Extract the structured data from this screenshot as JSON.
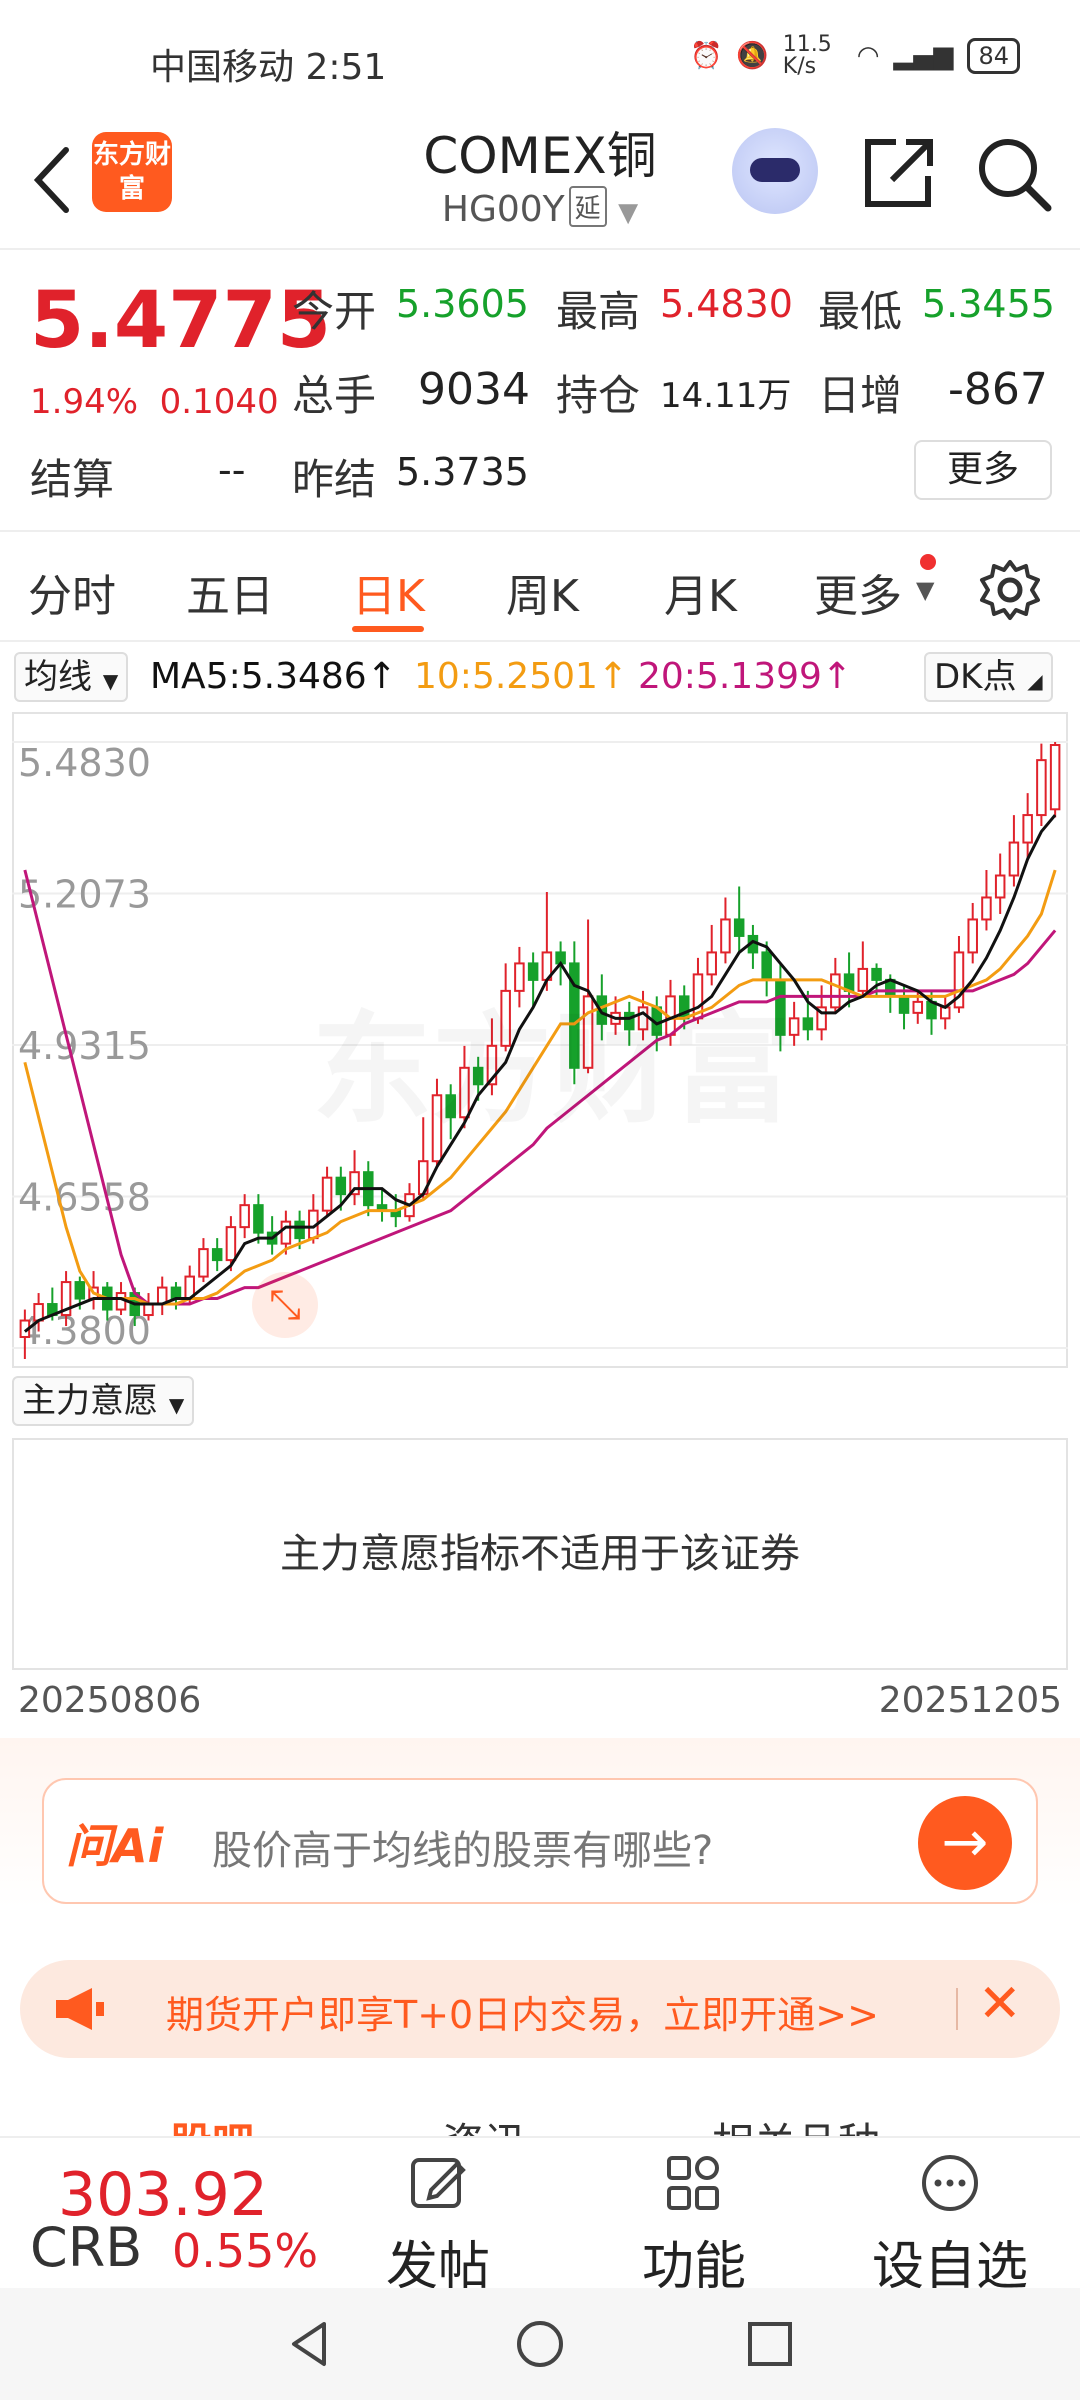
{
  "status": {
    "carrier": "中国移动 2:51",
    "net_speed": "11.5 K/s",
    "battery": "84"
  },
  "header": {
    "title": "COMEX铜",
    "code": "HG00Y",
    "delay_tag": "延",
    "logo_text": "东方财富"
  },
  "quote": {
    "price": "5.4775",
    "change_pct": "1.94%",
    "change": "0.1040",
    "open_label": "今开",
    "open": "5.3605",
    "high_label": "最高",
    "high": "5.4830",
    "low_label": "最低",
    "low": "5.3455",
    "volume_label": "总手",
    "volume": "9034",
    "oi_label": "持仓",
    "oi": "14.11万",
    "daily_inc_label": "日增",
    "daily_inc": "-867",
    "settle_label": "结算",
    "settle": "--",
    "prev_settle_label": "昨结",
    "prev_settle": "5.3735",
    "more": "更多"
  },
  "tabs": [
    "分时",
    "五日",
    "日K",
    "周K",
    "月K",
    "更多"
  ],
  "ma": {
    "selector": "均线",
    "ma5": "MA5:5.3486↑",
    "ma10": "10:5.2501↑",
    "ma20": "20:5.1399↑",
    "dk": "DK点"
  },
  "colors": {
    "accent": "#ff5a1f",
    "up": "#e0222b",
    "down": "#16a12b",
    "ma5": "#111111",
    "ma10": "#f39c12",
    "ma20": "#c0167a"
  },
  "chart_data": {
    "type": "candlestick",
    "y_ticks": [
      "5.4830",
      "5.2073",
      "4.9315",
      "4.6558",
      "4.3800"
    ],
    "ylim": [
      4.38,
      5.483
    ],
    "x_range": [
      "20250806",
      "20251205"
    ],
    "candles": [
      [
        4.4,
        4.43,
        4.36,
        4.45
      ],
      [
        4.43,
        4.46,
        4.41,
        4.48
      ],
      [
        4.46,
        4.44,
        4.43,
        4.49
      ],
      [
        4.44,
        4.5,
        4.42,
        4.52
      ],
      [
        4.5,
        4.47,
        4.45,
        4.51
      ],
      [
        4.47,
        4.49,
        4.45,
        4.52
      ],
      [
        4.49,
        4.45,
        4.43,
        4.5
      ],
      [
        4.45,
        4.48,
        4.44,
        4.5
      ],
      [
        4.48,
        4.44,
        4.42,
        4.49
      ],
      [
        4.44,
        4.46,
        4.43,
        4.48
      ],
      [
        4.46,
        4.49,
        4.44,
        4.51
      ],
      [
        4.49,
        4.47,
        4.45,
        4.5
      ],
      [
        4.47,
        4.51,
        4.46,
        4.53
      ],
      [
        4.51,
        4.56,
        4.5,
        4.58
      ],
      [
        4.56,
        4.54,
        4.52,
        4.58
      ],
      [
        4.54,
        4.6,
        4.52,
        4.62
      ],
      [
        4.6,
        4.64,
        4.58,
        4.66
      ],
      [
        4.64,
        4.59,
        4.57,
        4.66
      ],
      [
        4.59,
        4.57,
        4.55,
        4.62
      ],
      [
        4.57,
        4.61,
        4.55,
        4.63
      ],
      [
        4.61,
        4.58,
        4.56,
        4.63
      ],
      [
        4.58,
        4.63,
        4.57,
        4.66
      ],
      [
        4.63,
        4.69,
        4.62,
        4.71
      ],
      [
        4.69,
        4.66,
        4.63,
        4.71
      ],
      [
        4.66,
        4.7,
        4.64,
        4.74
      ],
      [
        4.7,
        4.64,
        4.62,
        4.72
      ],
      [
        4.64,
        4.63,
        4.61,
        4.67
      ],
      [
        4.63,
        4.62,
        4.6,
        4.66
      ],
      [
        4.62,
        4.66,
        4.61,
        4.68
      ],
      [
        4.66,
        4.72,
        4.65,
        4.8
      ],
      [
        4.72,
        4.84,
        4.71,
        4.87
      ],
      [
        4.84,
        4.8,
        4.76,
        4.86
      ],
      [
        4.8,
        4.89,
        4.78,
        4.93
      ],
      [
        4.89,
        4.86,
        4.83,
        4.91
      ],
      [
        4.86,
        4.93,
        4.84,
        4.98
      ],
      [
        4.93,
        5.03,
        4.92,
        5.08
      ],
      [
        5.03,
        5.08,
        5.0,
        5.11
      ],
      [
        5.08,
        5.05,
        5.0,
        5.1
      ],
      [
        5.05,
        5.1,
        5.03,
        5.21
      ],
      [
        5.1,
        5.08,
        5.04,
        5.12
      ],
      [
        5.08,
        4.89,
        4.86,
        5.12
      ],
      [
        4.89,
        5.02,
        4.88,
        5.16
      ],
      [
        5.02,
        4.97,
        4.94,
        5.06
      ],
      [
        4.97,
        4.99,
        4.95,
        5.02
      ],
      [
        4.99,
        4.96,
        4.93,
        5.01
      ],
      [
        4.96,
        5.0,
        4.94,
        5.03
      ],
      [
        5.0,
        4.95,
        4.92,
        5.02
      ],
      [
        4.95,
        5.02,
        4.93,
        5.05
      ],
      [
        5.02,
        4.98,
        4.96,
        5.04
      ],
      [
        4.98,
        5.06,
        4.97,
        5.09
      ],
      [
        5.06,
        5.1,
        5.04,
        5.15
      ],
      [
        5.1,
        5.16,
        5.08,
        5.2
      ],
      [
        5.16,
        5.13,
        5.1,
        5.22
      ],
      [
        5.13,
        5.1,
        5.07,
        5.15
      ],
      [
        5.1,
        5.05,
        5.02,
        5.12
      ],
      [
        5.05,
        4.95,
        4.92,
        5.08
      ],
      [
        4.95,
        4.98,
        4.93,
        5.01
      ],
      [
        4.98,
        4.96,
        4.94,
        5.03
      ],
      [
        4.96,
        5.0,
        4.94,
        5.04
      ],
      [
        5.0,
        5.06,
        4.99,
        5.09
      ],
      [
        5.06,
        5.03,
        5.0,
        5.1
      ],
      [
        5.03,
        5.07,
        5.02,
        5.12
      ],
      [
        5.07,
        5.05,
        5.02,
        5.08
      ],
      [
        5.05,
        5.02,
        4.99,
        5.06
      ],
      [
        5.02,
        4.99,
        4.96,
        5.04
      ],
      [
        4.99,
        5.01,
        4.97,
        5.03
      ],
      [
        5.01,
        4.98,
        4.95,
        5.03
      ],
      [
        4.98,
        5.0,
        4.96,
        5.02
      ],
      [
        5.0,
        5.1,
        4.99,
        5.13
      ],
      [
        5.1,
        5.16,
        5.08,
        5.19
      ],
      [
        5.16,
        5.2,
        5.14,
        5.25
      ],
      [
        5.2,
        5.24,
        5.17,
        5.28
      ],
      [
        5.24,
        5.3,
        5.22,
        5.35
      ],
      [
        5.3,
        5.35,
        5.27,
        5.39
      ],
      [
        5.35,
        5.45,
        5.33,
        5.48
      ],
      [
        5.3605,
        5.4775,
        5.3455,
        5.483
      ]
    ],
    "ma5": [
      4.41,
      4.43,
      4.44,
      4.45,
      4.46,
      4.47,
      4.47,
      4.47,
      4.46,
      4.46,
      4.46,
      4.47,
      4.47,
      4.49,
      4.51,
      4.53,
      4.57,
      4.58,
      4.58,
      4.6,
      4.6,
      4.6,
      4.62,
      4.64,
      4.67,
      4.67,
      4.67,
      4.65,
      4.64,
      4.66,
      4.71,
      4.75,
      4.79,
      4.84,
      4.87,
      4.9,
      4.96,
      5.0,
      5.05,
      5.08,
      5.04,
      5.03,
      4.99,
      4.98,
      4.98,
      4.99,
      4.97,
      4.98,
      4.99,
      5.0,
      5.02,
      5.06,
      5.1,
      5.12,
      5.11,
      5.08,
      5.05,
      5.01,
      4.99,
      4.99,
      5.01,
      5.02,
      5.04,
      5.05,
      5.04,
      5.03,
      5.01,
      5.0,
      5.02,
      5.05,
      5.09,
      5.14,
      5.2,
      5.27,
      5.32,
      5.35
    ],
    "ma10": [
      4.9,
      4.8,
      4.7,
      4.6,
      4.52,
      4.48,
      4.47,
      4.47,
      4.47,
      4.46,
      4.46,
      4.46,
      4.47,
      4.47,
      4.48,
      4.5,
      4.52,
      4.53,
      4.54,
      4.56,
      4.57,
      4.58,
      4.59,
      4.61,
      4.62,
      4.63,
      4.63,
      4.63,
      4.64,
      4.65,
      4.67,
      4.69,
      4.72,
      4.75,
      4.78,
      4.81,
      4.85,
      4.89,
      4.93,
      4.97,
      4.97,
      4.99,
      5.0,
      5.01,
      5.02,
      5.01,
      5.0,
      4.98,
      4.98,
      4.99,
      5.0,
      5.02,
      5.04,
      5.05,
      5.05,
      5.05,
      5.05,
      5.05,
      5.05,
      5.04,
      5.03,
      5.02,
      5.02,
      5.02,
      5.02,
      5.02,
      5.02,
      5.02,
      5.03,
      5.04,
      5.05,
      5.07,
      5.1,
      5.13,
      5.17,
      5.25
    ],
    "ma20": [
      5.25,
      5.15,
      5.05,
      4.95,
      4.85,
      4.75,
      4.65,
      4.55,
      4.48,
      4.46,
      4.46,
      4.46,
      4.46,
      4.47,
      4.47,
      4.48,
      4.49,
      4.49,
      4.5,
      4.51,
      4.52,
      4.53,
      4.54,
      4.55,
      4.56,
      4.57,
      4.58,
      4.59,
      4.6,
      4.61,
      4.62,
      4.63,
      4.65,
      4.67,
      4.69,
      4.71,
      4.73,
      4.75,
      4.78,
      4.8,
      4.82,
      4.84,
      4.86,
      4.88,
      4.9,
      4.92,
      4.94,
      4.95,
      4.97,
      4.98,
      4.99,
      5.0,
      5.01,
      5.01,
      5.01,
      5.02,
      5.02,
      5.02,
      5.02,
      5.02,
      5.02,
      5.02,
      5.03,
      5.03,
      5.03,
      5.03,
      5.03,
      5.03,
      5.03,
      5.03,
      5.04,
      5.05,
      5.06,
      5.08,
      5.11,
      5.14
    ]
  },
  "indicator": {
    "selector": "主力意愿",
    "message": "主力意愿指标不适用于该证券"
  },
  "dates": {
    "start": "20250806",
    "end": "20251205"
  },
  "ai": {
    "logo": "问Ai",
    "placeholder": "股价高于均线的股票有哪些?",
    "go": "→"
  },
  "promo": {
    "text": "期货开户即享T+0日内交易，立即开通>>"
  },
  "lower_tabs": [
    "股吧",
    "资讯",
    "相关品种"
  ],
  "bottom": {
    "index_value": "303.92",
    "index_name": "CRB",
    "index_pct": "0.55%",
    "post": "发帖",
    "func": "功能",
    "watch": "设自选"
  }
}
